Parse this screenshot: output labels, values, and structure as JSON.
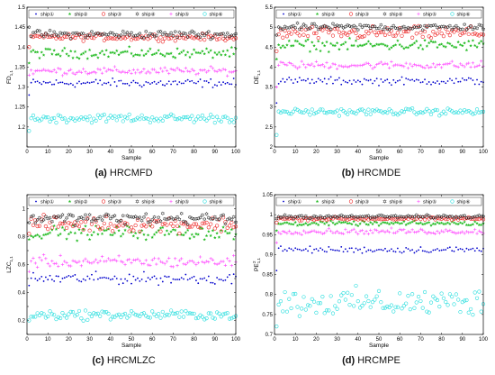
{
  "legend": [
    "ship①",
    "ship②",
    "ship③",
    "ship④",
    "ship⑤",
    "ship⑥"
  ],
  "series_style": {
    "colors": [
      "#0000cc",
      "#22bb22",
      "#ee2222",
      "#222222",
      "#ff44ff",
      "#22dddd"
    ],
    "markers": [
      "dot",
      "star",
      "circle",
      "hexagram",
      "plus",
      "circle"
    ]
  },
  "chart_data": [
    {
      "type": "scatter",
      "panel_letter": "(a)",
      "caption": "HRCMFD",
      "xlabel": "Sample",
      "ylabel_base": "FD",
      "ylabel_sub": "1,1",
      "ylabel_sup": "",
      "xlim": [
        0,
        100
      ],
      "ylim": [
        1.15,
        1.5
      ],
      "xticks": [
        0,
        10,
        20,
        30,
        40,
        50,
        60,
        70,
        80,
        90,
        100
      ],
      "yticks": [
        1.15,
        1.2,
        1.25,
        1.3,
        1.35,
        1.4,
        1.45,
        1.5
      ],
      "ytick_labels": [
        "",
        "1.2",
        "1.25",
        "1.3",
        "1.35",
        "1.4",
        "1.45",
        "1.5"
      ],
      "series": [
        {
          "mean": 1.31,
          "spread": 0.008,
          "first": 1.28
        },
        {
          "mean": 1.385,
          "spread": 0.009,
          "first": 1.36
        },
        {
          "mean": 1.425,
          "spread": 0.006,
          "first": 1.4
        },
        {
          "mean": 1.432,
          "spread": 0.007,
          "first": 1.45
        },
        {
          "mean": 1.34,
          "spread": 0.007,
          "first": 1.33
        },
        {
          "mean": 1.222,
          "spread": 0.008,
          "first": 1.19
        }
      ]
    },
    {
      "type": "scatter",
      "panel_letter": "(b)",
      "caption": "HRCMDE",
      "xlabel": "Sample",
      "ylabel_base": "DE",
      "ylabel_sub": "1,1",
      "ylabel_sup": "",
      "xlim": [
        0,
        100
      ],
      "ylim": [
        2,
        5.5
      ],
      "xticks": [
        0,
        10,
        20,
        30,
        40,
        50,
        60,
        70,
        80,
        90,
        100
      ],
      "yticks": [
        2,
        2.5,
        3,
        3.5,
        4,
        4.5,
        5,
        5.5
      ],
      "ytick_labels": [
        "2",
        "2.5",
        "3",
        "3.5",
        "4",
        "4.5",
        "5",
        "5.5"
      ],
      "series": [
        {
          "mean": 3.65,
          "spread": 0.07,
          "first": 3.1
        },
        {
          "mean": 4.55,
          "spread": 0.1,
          "first": 4.2
        },
        {
          "mean": 4.85,
          "spread": 0.12,
          "first": 4.4
        },
        {
          "mean": 5.0,
          "spread": 0.06,
          "first": 4.8
        },
        {
          "mean": 4.05,
          "spread": 0.07,
          "first": 3.5
        },
        {
          "mean": 2.88,
          "spread": 0.06,
          "first": 2.3
        }
      ]
    },
    {
      "type": "scatter",
      "panel_letter": "(c)",
      "caption": "HRCMLZC",
      "xlabel": "Sample",
      "ylabel_base": "LZC",
      "ylabel_sub": "1,1",
      "ylabel_sup": "",
      "xlim": [
        0,
        100
      ],
      "ylim": [
        0.1,
        1.1
      ],
      "xticks": [
        0,
        10,
        20,
        30,
        40,
        50,
        60,
        70,
        80,
        90,
        100
      ],
      "yticks": [
        0.1,
        0.2,
        0.3,
        0.4,
        0.5,
        0.6,
        0.7,
        0.8,
        0.9,
        1.0,
        1.1
      ],
      "ytick_labels": [
        "",
        "0.2",
        "",
        "0.4",
        "",
        "0.6",
        "",
        "0.8",
        "",
        "1",
        ""
      ],
      "series": [
        {
          "mean": 0.5,
          "spread": 0.03,
          "first": 0.45
        },
        {
          "mean": 0.83,
          "spread": 0.035,
          "first": 0.78
        },
        {
          "mean": 0.89,
          "spread": 0.04,
          "first": 0.82
        },
        {
          "mean": 0.93,
          "spread": 0.03,
          "first": 0.9
        },
        {
          "mean": 0.62,
          "spread": 0.03,
          "first": 0.55
        },
        {
          "mean": 0.24,
          "spread": 0.025,
          "first": 0.2
        }
      ]
    },
    {
      "type": "scatter",
      "panel_letter": "(d)",
      "caption": "HRCMPE",
      "xlabel": "Sample",
      "ylabel_base": "PE",
      "ylabel_sub": "1,1",
      "ylabel_sup": "2",
      "xlim": [
        0,
        100
      ],
      "ylim": [
        0.7,
        1.05
      ],
      "xticks": [
        0,
        10,
        20,
        30,
        40,
        50,
        60,
        70,
        80,
        90,
        100
      ],
      "yticks": [
        0.7,
        0.75,
        0.8,
        0.85,
        0.9,
        0.95,
        1.0,
        1.05
      ],
      "ytick_labels": [
        "0.7",
        "0.75",
        "0.8",
        "0.85",
        "0.9",
        "0.95",
        "1",
        "1.05"
      ],
      "series": [
        {
          "mean": 0.912,
          "spread": 0.006,
          "first": 0.86
        },
        {
          "mean": 0.978,
          "spread": 0.004,
          "first": 0.96
        },
        {
          "mean": 0.99,
          "spread": 0.003,
          "first": 0.98
        },
        {
          "mean": 0.995,
          "spread": 0.003,
          "first": 0.99
        },
        {
          "mean": 0.958,
          "spread": 0.005,
          "first": 0.93
        },
        {
          "mean": 0.78,
          "spread": 0.025,
          "first": 0.72
        }
      ]
    }
  ]
}
